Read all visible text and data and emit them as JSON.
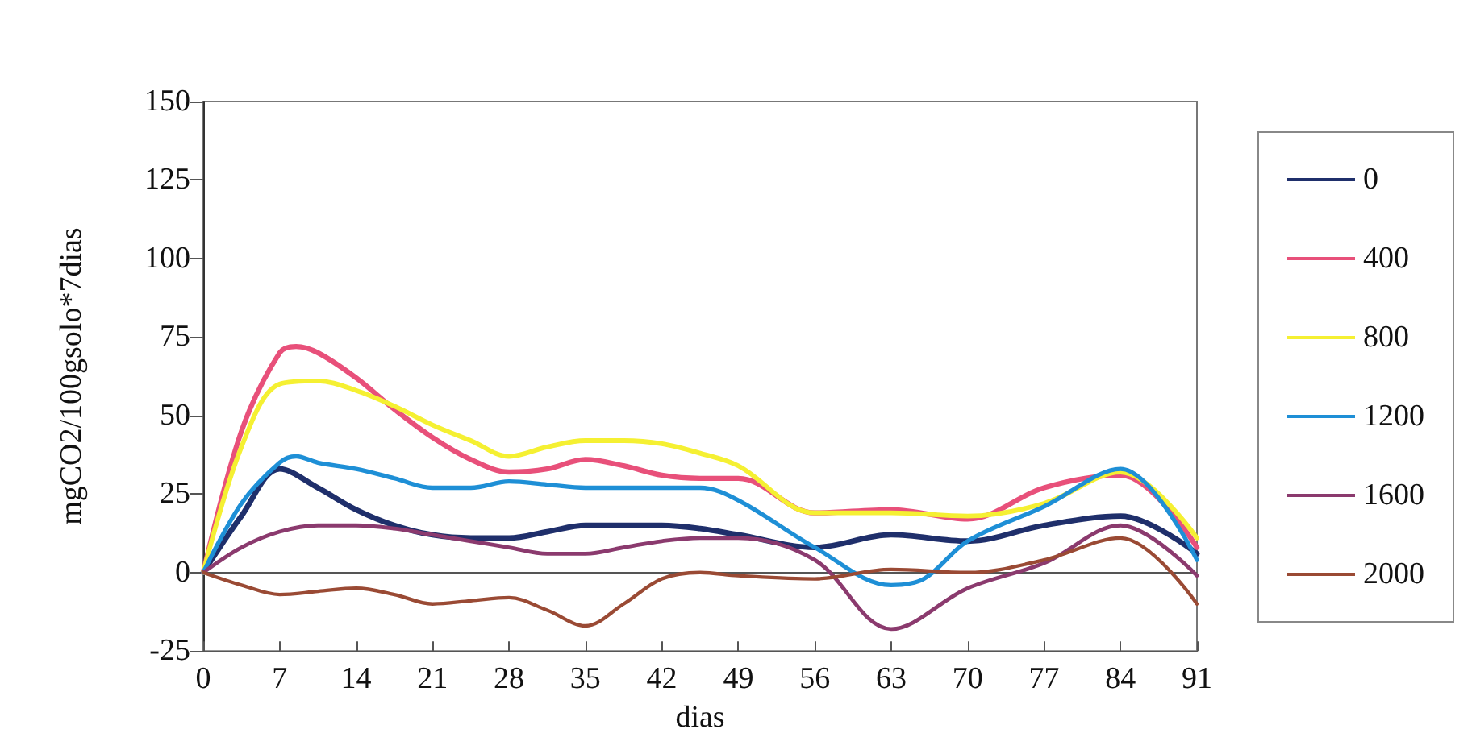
{
  "chart_data": {
    "type": "line",
    "xlabel": "dias",
    "ylabel": "mgCO2/100gsolo*7dias",
    "xlim": [
      0,
      91
    ],
    "xticks": [
      0,
      7,
      14,
      21,
      28,
      35,
      42,
      49,
      56,
      63,
      70,
      77,
      84,
      91
    ],
    "ylim": [
      -25,
      150
    ],
    "yticks": [
      -25,
      0,
      25,
      50,
      75,
      100,
      125,
      150
    ],
    "grid": false,
    "ref_lines": [
      {
        "axis": "y",
        "value": 0,
        "color": "#555555"
      }
    ],
    "legend": "right",
    "marker": "none",
    "line_style": "solid",
    "series": [
      {
        "name": "0",
        "color": "#1f2f6b",
        "x": [
          0,
          3.5,
          7,
          10.5,
          14,
          17.5,
          21,
          24.5,
          28,
          31.5,
          35,
          38.5,
          42,
          45.5,
          49,
          56,
          63,
          70,
          77,
          84,
          91
        ],
        "values": [
          0,
          18,
          33,
          27,
          20,
          15,
          12,
          11,
          11,
          13,
          15,
          15,
          15,
          14,
          12,
          8,
          12,
          10,
          15,
          18,
          6
        ]
      },
      {
        "name": "400",
        "color": "#e8507a",
        "x": [
          0,
          3.5,
          7,
          8.5,
          10.5,
          14,
          17.5,
          21,
          24.5,
          28,
          31.5,
          35,
          38.5,
          42,
          45.5,
          49,
          56,
          63,
          70,
          77,
          84,
          91
        ],
        "values": [
          0,
          45,
          70,
          72,
          70,
          62,
          52,
          43,
          36,
          32,
          33,
          36,
          34,
          31,
          30,
          30,
          19,
          20,
          17,
          27,
          31,
          8
        ]
      },
      {
        "name": "800",
        "color": "#f5f032",
        "x": [
          0,
          3.5,
          7,
          10.5,
          14,
          17.5,
          21,
          24.5,
          28,
          31.5,
          35,
          38.5,
          42,
          45.5,
          49,
          56,
          63,
          70,
          77,
          84,
          91
        ],
        "values": [
          0,
          40,
          60,
          61,
          58,
          53,
          47,
          42,
          37,
          40,
          42,
          42,
          41,
          38,
          34,
          19,
          19,
          18,
          22,
          32,
          11
        ]
      },
      {
        "name": "1200",
        "color": "#1e8fd6",
        "x": [
          0,
          3.5,
          7,
          8.5,
          10.5,
          14,
          17.5,
          21,
          24.5,
          28,
          31.5,
          35,
          38.5,
          42,
          45.5,
          49,
          56,
          63,
          66,
          70,
          77,
          84,
          91
        ],
        "values": [
          0,
          22,
          35,
          37,
          35,
          33,
          30,
          27,
          27,
          29,
          28,
          27,
          27,
          27,
          27,
          23,
          8,
          -4,
          -2,
          10,
          21,
          33,
          4
        ]
      },
      {
        "name": "1600",
        "color": "#8b3a6e",
        "x": [
          0,
          3.5,
          7,
          10.5,
          14,
          17.5,
          21,
          24.5,
          28,
          31.5,
          35,
          38.5,
          42,
          45.5,
          49,
          56,
          63,
          70,
          77,
          84,
          91
        ],
        "values": [
          0,
          8,
          13,
          15,
          15,
          14,
          12,
          10,
          8,
          6,
          6,
          8,
          10,
          11,
          11,
          4,
          -18,
          -5,
          3,
          15,
          -1
        ]
      },
      {
        "name": "2000",
        "color": "#9a4a34",
        "x": [
          0,
          3.5,
          7,
          10.5,
          14,
          17.5,
          21,
          24.5,
          28,
          31.5,
          35,
          38.5,
          42,
          45.5,
          49,
          56,
          63,
          70,
          77,
          84,
          91
        ],
        "values": [
          0,
          -4,
          -7,
          -6,
          -5,
          -7,
          -10,
          -9,
          -8,
          -12,
          -17,
          -10,
          -2,
          0,
          -1,
          -2,
          1,
          0,
          4,
          11,
          -10
        ]
      }
    ]
  }
}
